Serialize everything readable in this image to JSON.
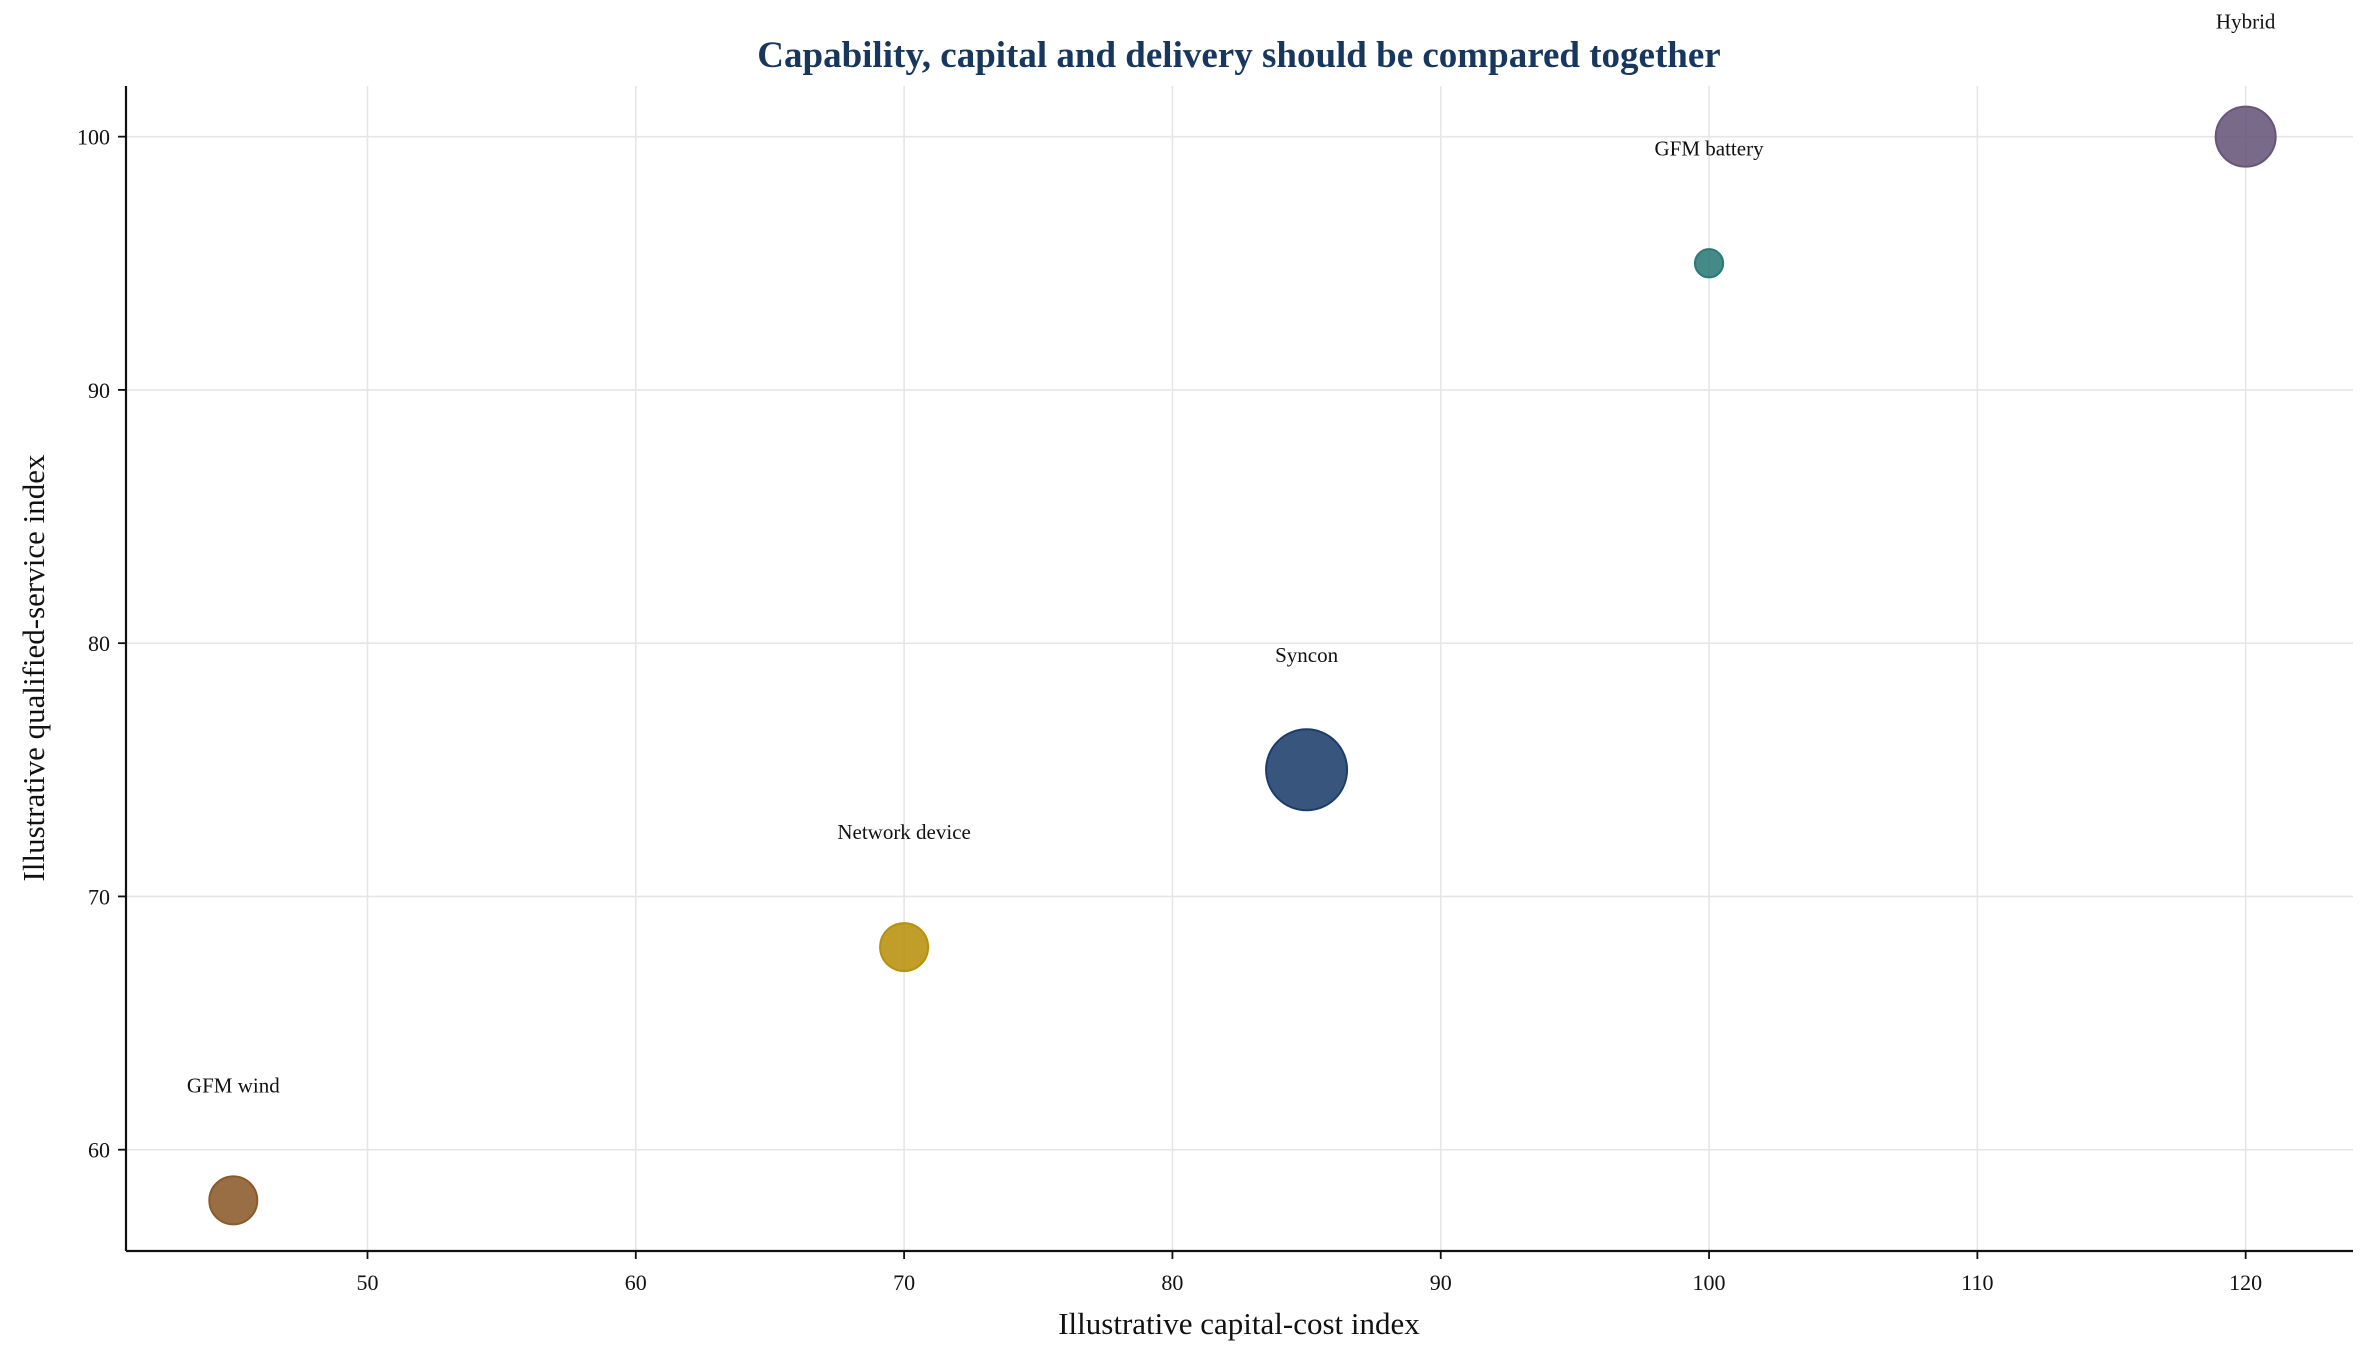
{
  "chart_data": {
    "type": "scatter",
    "title": "Capability, capital and delivery should be compared together",
    "xlabel": "Illustrative capital-cost index",
    "ylabel": "Illustrative qualified-service index",
    "xlim": [
      41,
      124
    ],
    "ylim": [
      56,
      102
    ],
    "xticks": [
      50,
      60,
      70,
      80,
      90,
      100,
      110,
      120
    ],
    "yticks": [
      60,
      70,
      80,
      90,
      100
    ],
    "grid": true,
    "legend": "none",
    "points": [
      {
        "label": "GFM wind",
        "x": 45,
        "y": 58,
        "relative_size": 0.8,
        "color": "#8b5a2b"
      },
      {
        "label": "Network device",
        "x": 70,
        "y": 68,
        "relative_size": 0.8,
        "color": "#b8900c"
      },
      {
        "label": "Syncon",
        "x": 85,
        "y": 75,
        "relative_size": 1.35,
        "color": "#1c3d6c"
      },
      {
        "label": "GFM battery",
        "x": 100,
        "y": 95,
        "relative_size": 0.47,
        "color": "#2a7a76"
      },
      {
        "label": "Hybrid",
        "x": 120,
        "y": 100,
        "relative_size": 1.0,
        "color": "#67557a"
      }
    ]
  }
}
